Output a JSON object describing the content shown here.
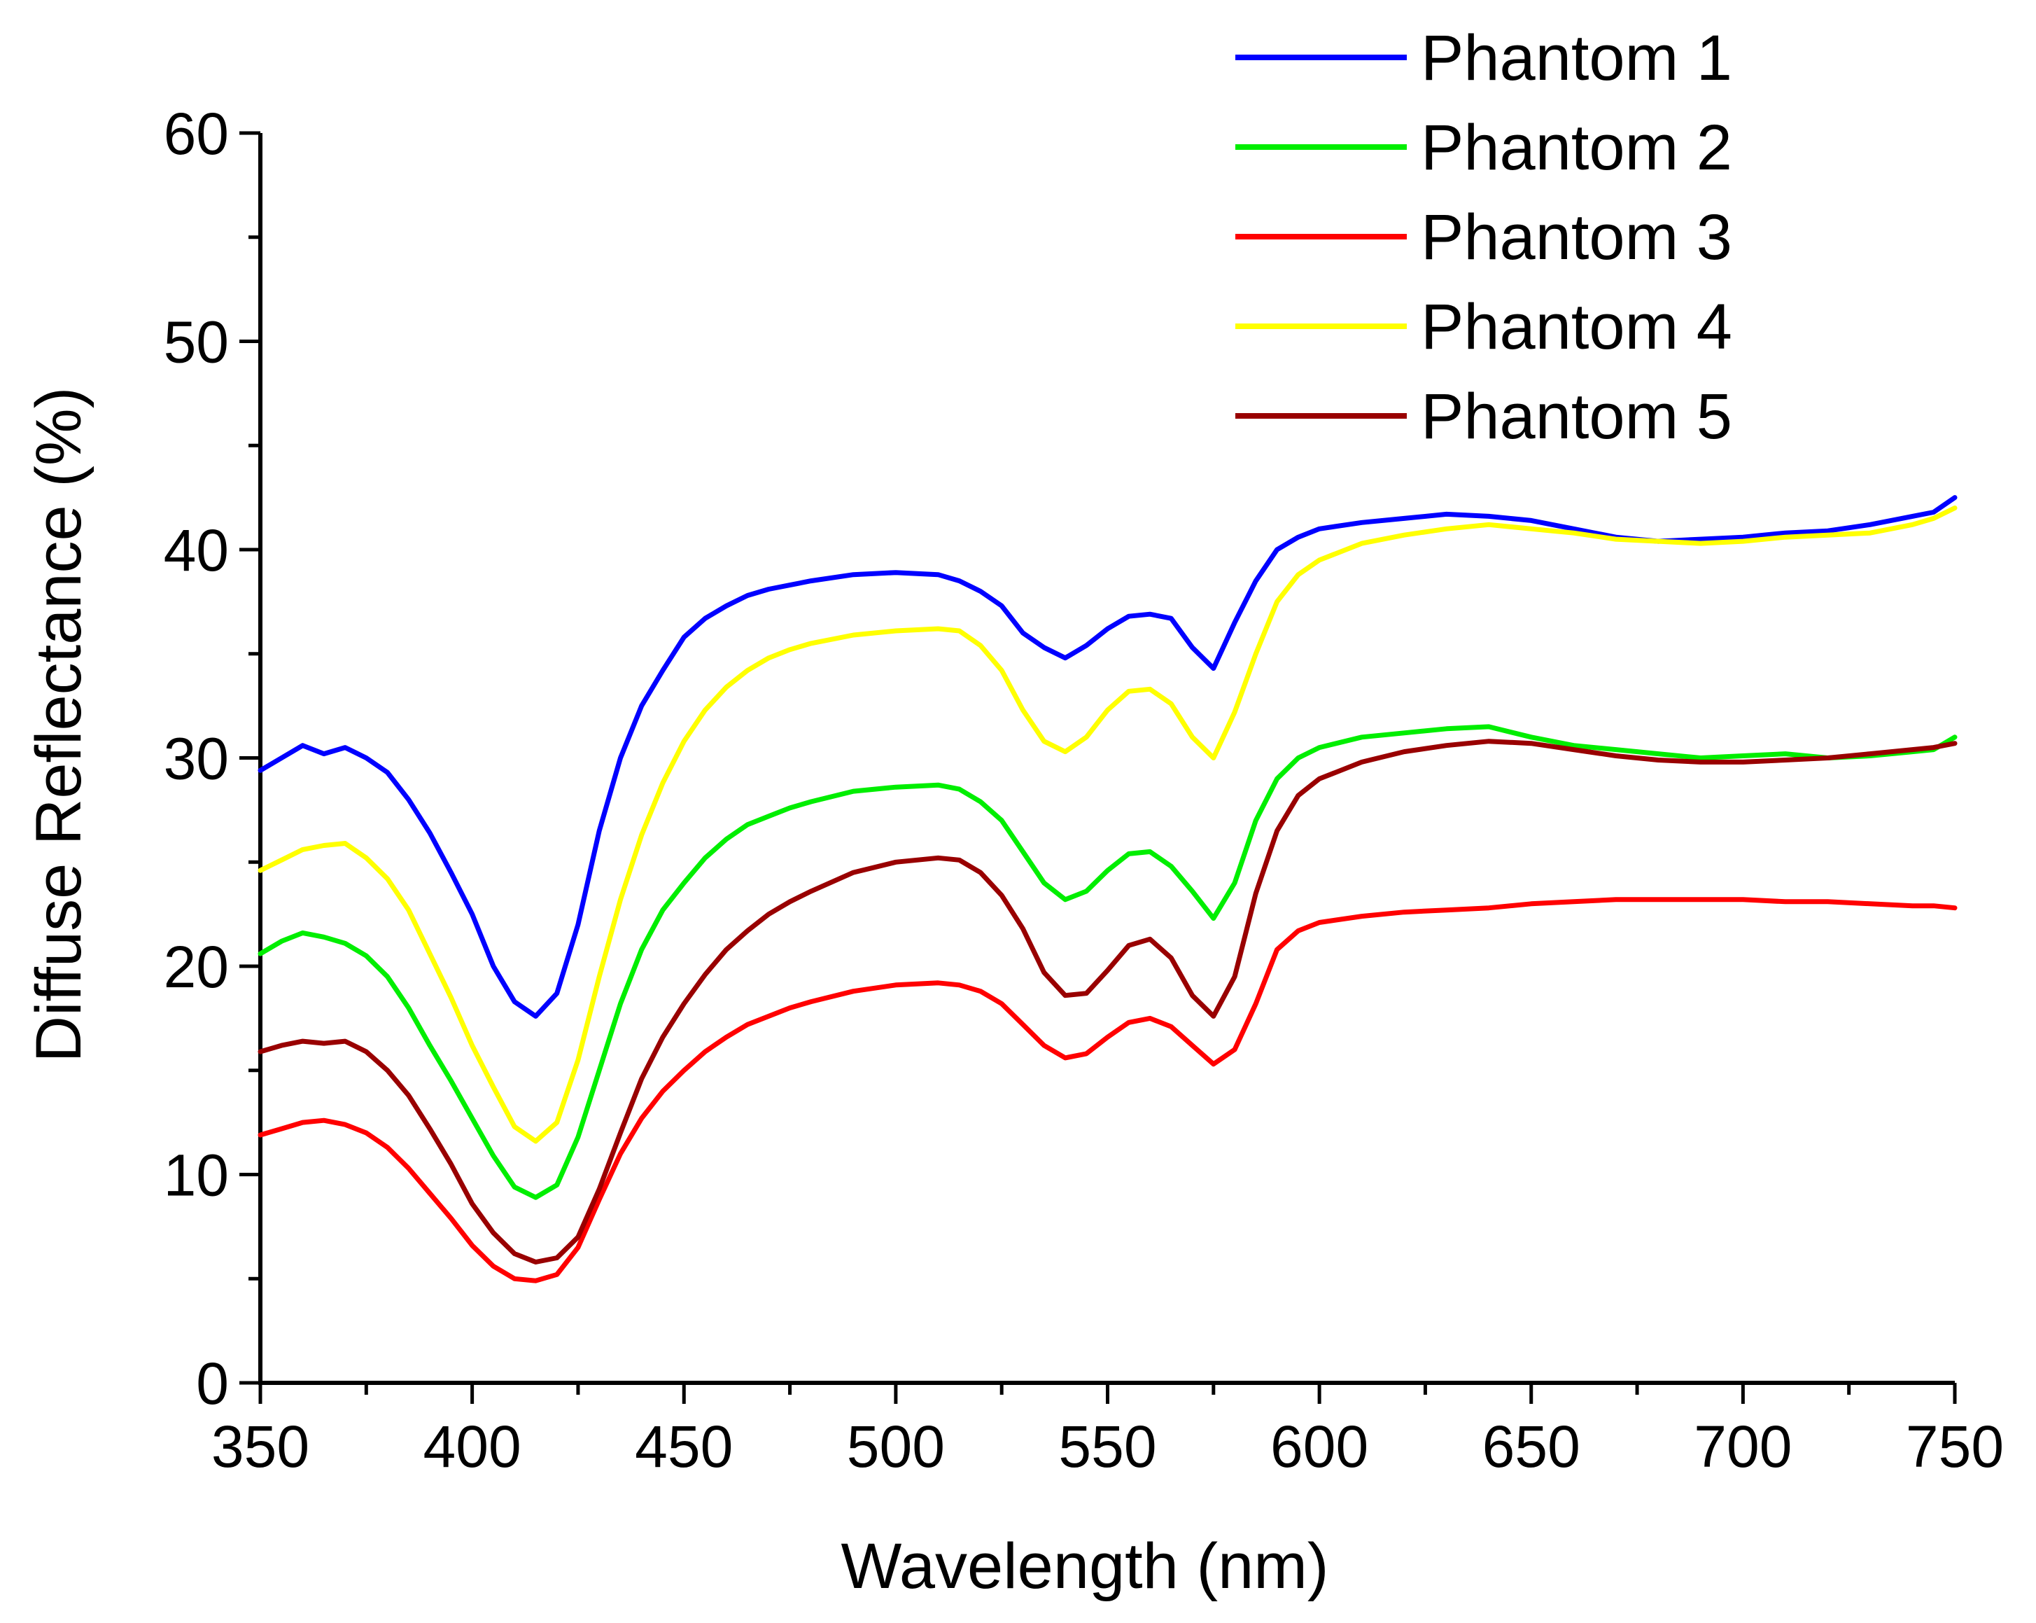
{
  "chart_data": {
    "type": "line",
    "title": "",
    "xlabel": "Wavelength (nm)",
    "ylabel": "Diffuse Reflectance (%)",
    "xlim": [
      350,
      750
    ],
    "ylim": [
      0,
      60
    ],
    "x_ticks": [
      350,
      400,
      450,
      500,
      550,
      600,
      650,
      700,
      750
    ],
    "x_tick_labels": [
      "350",
      "400",
      "450",
      "500",
      "550",
      "600",
      "650",
      "700",
      "750"
    ],
    "y_ticks": [
      0,
      10,
      20,
      30,
      40,
      50,
      60
    ],
    "y_tick_labels": [
      "0",
      "10",
      "20",
      "30",
      "40",
      "50",
      "60"
    ],
    "grid": false,
    "legend_position": "top-right",
    "series": [
      {
        "name": "Phantom 1",
        "color": "#0000ff",
        "x": [
          350,
          355,
          360,
          365,
          370,
          375,
          380,
          385,
          390,
          395,
          400,
          405,
          410,
          415,
          420,
          425,
          430,
          435,
          440,
          445,
          450,
          455,
          460,
          465,
          470,
          475,
          480,
          490,
          500,
          510,
          515,
          520,
          525,
          530,
          535,
          540,
          545,
          550,
          555,
          560,
          565,
          570,
          575,
          580,
          585,
          590,
          595,
          600,
          610,
          620,
          630,
          640,
          650,
          660,
          670,
          680,
          690,
          700,
          710,
          720,
          730,
          740,
          745,
          750
        ],
        "values": [
          29.4,
          30.0,
          30.6,
          30.2,
          30.5,
          30.0,
          29.3,
          28.0,
          26.4,
          24.5,
          22.5,
          20.0,
          18.3,
          17.6,
          18.7,
          22.0,
          26.5,
          30.0,
          32.5,
          34.2,
          35.8,
          36.7,
          37.3,
          37.8,
          38.1,
          38.3,
          38.5,
          38.8,
          38.9,
          38.8,
          38.5,
          38.0,
          37.3,
          36.0,
          35.3,
          34.8,
          35.4,
          36.2,
          36.8,
          36.9,
          36.7,
          35.3,
          34.3,
          36.5,
          38.5,
          40.0,
          40.6,
          41.0,
          41.3,
          41.5,
          41.7,
          41.6,
          41.4,
          41.0,
          40.6,
          40.4,
          40.5,
          40.6,
          40.8,
          40.9,
          41.2,
          41.6,
          41.8,
          42.5
        ]
      },
      {
        "name": "Phantom 2",
        "color": "#00ee00",
        "x": [
          350,
          355,
          360,
          365,
          370,
          375,
          380,
          385,
          390,
          395,
          400,
          405,
          410,
          415,
          420,
          425,
          430,
          435,
          440,
          445,
          450,
          455,
          460,
          465,
          470,
          475,
          480,
          490,
          500,
          510,
          515,
          520,
          525,
          530,
          535,
          540,
          545,
          550,
          555,
          560,
          565,
          570,
          575,
          580,
          585,
          590,
          595,
          600,
          610,
          620,
          630,
          640,
          650,
          660,
          670,
          680,
          690,
          700,
          710,
          720,
          730,
          740,
          745,
          750
        ],
        "values": [
          20.6,
          21.2,
          21.6,
          21.4,
          21.1,
          20.5,
          19.5,
          18.0,
          16.2,
          14.5,
          12.7,
          10.9,
          9.4,
          8.9,
          9.5,
          11.8,
          15.0,
          18.2,
          20.8,
          22.7,
          24.0,
          25.2,
          26.1,
          26.8,
          27.2,
          27.6,
          27.9,
          28.4,
          28.6,
          28.7,
          28.5,
          27.9,
          27.0,
          25.5,
          24.0,
          23.2,
          23.6,
          24.6,
          25.4,
          25.5,
          24.8,
          23.6,
          22.3,
          24.0,
          27.0,
          29.0,
          30.0,
          30.5,
          31.0,
          31.2,
          31.4,
          31.5,
          31.0,
          30.6,
          30.4,
          30.2,
          30.0,
          30.1,
          30.2,
          30.0,
          30.1,
          30.3,
          30.4,
          31.0
        ]
      },
      {
        "name": "Phantom 3",
        "color": "#ff0000",
        "x": [
          350,
          355,
          360,
          365,
          370,
          375,
          380,
          385,
          390,
          395,
          400,
          405,
          410,
          415,
          420,
          425,
          430,
          435,
          440,
          445,
          450,
          455,
          460,
          465,
          470,
          475,
          480,
          490,
          500,
          510,
          515,
          520,
          525,
          530,
          535,
          540,
          545,
          550,
          555,
          560,
          565,
          570,
          575,
          580,
          585,
          590,
          595,
          600,
          610,
          620,
          630,
          640,
          650,
          660,
          670,
          680,
          690,
          700,
          710,
          720,
          730,
          740,
          745,
          750
        ],
        "values": [
          11.9,
          12.2,
          12.5,
          12.6,
          12.4,
          12.0,
          11.3,
          10.3,
          9.1,
          7.9,
          6.6,
          5.6,
          5.0,
          4.9,
          5.2,
          6.5,
          8.8,
          11.0,
          12.7,
          14.0,
          15.0,
          15.9,
          16.6,
          17.2,
          17.6,
          18.0,
          18.3,
          18.8,
          19.1,
          19.2,
          19.1,
          18.8,
          18.2,
          17.2,
          16.2,
          15.6,
          15.8,
          16.6,
          17.3,
          17.5,
          17.1,
          16.2,
          15.3,
          16.0,
          18.2,
          20.8,
          21.7,
          22.1,
          22.4,
          22.6,
          22.7,
          22.8,
          23.0,
          23.1,
          23.2,
          23.2,
          23.2,
          23.2,
          23.1,
          23.1,
          23.0,
          22.9,
          22.9,
          22.8
        ]
      },
      {
        "name": "Phantom 4",
        "color": "#ffff00",
        "x": [
          350,
          355,
          360,
          365,
          370,
          375,
          380,
          385,
          390,
          395,
          400,
          405,
          410,
          415,
          420,
          425,
          430,
          435,
          440,
          445,
          450,
          455,
          460,
          465,
          470,
          475,
          480,
          490,
          500,
          510,
          515,
          520,
          525,
          530,
          535,
          540,
          545,
          550,
          555,
          560,
          565,
          570,
          575,
          580,
          585,
          590,
          595,
          600,
          610,
          620,
          630,
          640,
          650,
          660,
          670,
          680,
          690,
          700,
          710,
          720,
          730,
          740,
          745,
          750
        ],
        "values": [
          24.6,
          25.1,
          25.6,
          25.8,
          25.9,
          25.2,
          24.2,
          22.7,
          20.6,
          18.5,
          16.2,
          14.2,
          12.3,
          11.6,
          12.5,
          15.5,
          19.5,
          23.2,
          26.3,
          28.8,
          30.8,
          32.3,
          33.4,
          34.2,
          34.8,
          35.2,
          35.5,
          35.9,
          36.1,
          36.2,
          36.1,
          35.4,
          34.2,
          32.3,
          30.8,
          30.3,
          31.0,
          32.3,
          33.2,
          33.3,
          32.6,
          31.0,
          30.0,
          32.2,
          35.0,
          37.5,
          38.8,
          39.5,
          40.3,
          40.7,
          41.0,
          41.2,
          41.0,
          40.8,
          40.5,
          40.4,
          40.3,
          40.4,
          40.6,
          40.7,
          40.8,
          41.2,
          41.5,
          42.0
        ]
      },
      {
        "name": "Phantom 5",
        "color": "#990000",
        "x": [
          350,
          355,
          360,
          365,
          370,
          375,
          380,
          385,
          390,
          395,
          400,
          405,
          410,
          415,
          420,
          425,
          430,
          435,
          440,
          445,
          450,
          455,
          460,
          465,
          470,
          475,
          480,
          490,
          500,
          510,
          515,
          520,
          525,
          530,
          535,
          540,
          545,
          550,
          555,
          560,
          565,
          570,
          575,
          580,
          585,
          590,
          595,
          600,
          610,
          620,
          630,
          640,
          650,
          660,
          670,
          680,
          690,
          700,
          710,
          720,
          730,
          740,
          745,
          750
        ],
        "values": [
          15.9,
          16.2,
          16.4,
          16.3,
          16.4,
          15.9,
          15.0,
          13.8,
          12.2,
          10.5,
          8.6,
          7.2,
          6.2,
          5.8,
          6.0,
          7.0,
          9.3,
          12.0,
          14.6,
          16.6,
          18.2,
          19.6,
          20.8,
          21.7,
          22.5,
          23.1,
          23.6,
          24.5,
          25.0,
          25.2,
          25.1,
          24.5,
          23.4,
          21.8,
          19.7,
          18.6,
          18.7,
          19.8,
          21.0,
          21.3,
          20.4,
          18.6,
          17.6,
          19.5,
          23.5,
          26.5,
          28.2,
          29.0,
          29.8,
          30.3,
          30.6,
          30.8,
          30.7,
          30.4,
          30.1,
          29.9,
          29.8,
          29.8,
          29.9,
          30.0,
          30.2,
          30.4,
          30.5,
          30.7
        ]
      }
    ]
  }
}
